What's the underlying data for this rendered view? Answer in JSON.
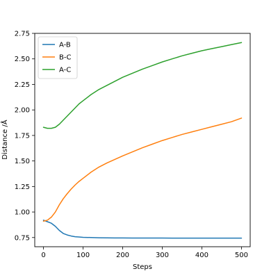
{
  "chart_data": {
    "type": "line",
    "title": "",
    "xlabel": "Steps",
    "ylabel": "Distance /Å",
    "xlim": [
      -22,
      522
    ],
    "ylim": [
      0.66,
      2.75
    ],
    "xticks": [
      0,
      100,
      200,
      300,
      400,
      500
    ],
    "xtick_labels": [
      "0",
      "100",
      "200",
      "300",
      "400",
      "500"
    ],
    "yticks": [
      0.75,
      1.0,
      1.25,
      1.5,
      1.75,
      2.0,
      2.25,
      2.5,
      2.75
    ],
    "ytick_labels": [
      "0.75",
      "1.00",
      "1.25",
      "1.50",
      "1.75",
      "2.00",
      "2.25",
      "2.50",
      "2.75"
    ],
    "grid": false,
    "legend_position": "top-left",
    "x": [
      0,
      10,
      20,
      30,
      40,
      50,
      60,
      70,
      80,
      90,
      100,
      120,
      140,
      160,
      180,
      200,
      225,
      250,
      275,
      300,
      325,
      350,
      375,
      400,
      425,
      450,
      475,
      500
    ],
    "series": [
      {
        "name": "A-B",
        "color": "#1f77b4",
        "values": [
          0.92,
          0.905,
          0.89,
          0.86,
          0.82,
          0.79,
          0.775,
          0.765,
          0.758,
          0.755,
          0.752,
          0.75,
          0.748,
          0.747,
          0.746,
          0.746,
          0.745,
          0.745,
          0.745,
          0.745,
          0.744,
          0.744,
          0.744,
          0.744,
          0.744,
          0.744,
          0.744,
          0.744
        ]
      },
      {
        "name": "B-C",
        "color": "#ff7f0e",
        "values": [
          0.91,
          0.92,
          0.95,
          1.0,
          1.07,
          1.13,
          1.18,
          1.225,
          1.265,
          1.3,
          1.33,
          1.39,
          1.44,
          1.48,
          1.515,
          1.55,
          1.59,
          1.63,
          1.665,
          1.7,
          1.73,
          1.76,
          1.785,
          1.81,
          1.835,
          1.86,
          1.885,
          1.92
        ]
      },
      {
        "name": "A-C",
        "color": "#2ca02c",
        "values": [
          1.83,
          1.82,
          1.82,
          1.83,
          1.86,
          1.9,
          1.94,
          1.98,
          2.02,
          2.06,
          2.09,
          2.15,
          2.2,
          2.24,
          2.28,
          2.32,
          2.36,
          2.4,
          2.435,
          2.47,
          2.5,
          2.53,
          2.555,
          2.58,
          2.6,
          2.62,
          2.64,
          2.66
        ]
      }
    ]
  }
}
